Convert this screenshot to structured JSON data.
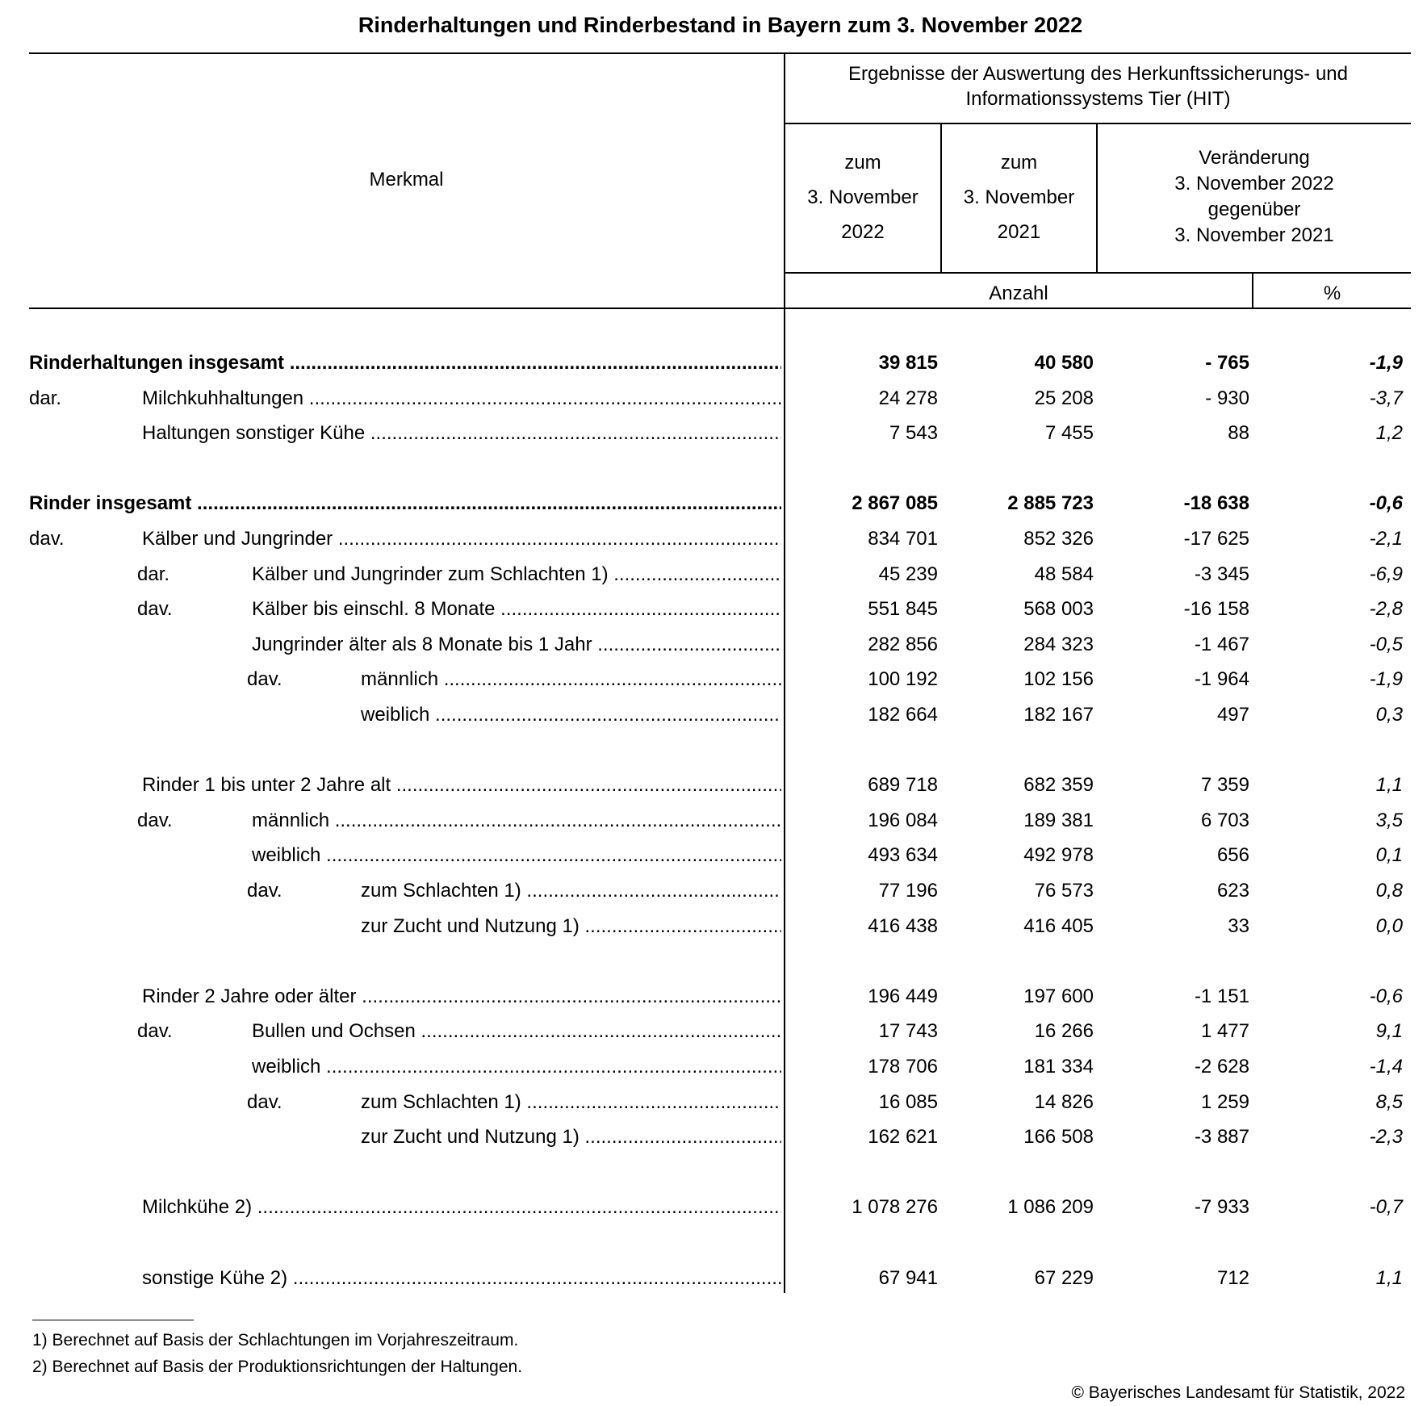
{
  "title": "Rinderhaltungen und Rinderbestand in Bayern zum 3. November 2022",
  "header": {
    "merkmal": "Merkmal",
    "source_line1": "Ergebnisse der Auswertung des Herkunftssicherungs- und",
    "source_line2": "Informationssystems Tier (HIT)",
    "col1": [
      "zum",
      "3. November",
      "2022"
    ],
    "col2": [
      "zum",
      "3. November",
      "2021"
    ],
    "col3": [
      "Veränderung",
      "3. November 2022",
      "gegenüber",
      "3. November 2021"
    ],
    "unit_count": "Anzahl",
    "unit_pct": "%"
  },
  "rows": [
    {
      "slot": 0,
      "level": 0,
      "bold": true,
      "label": "Rinderhaltungen insgesamt",
      "v2022": "39 815",
      "v2021": "40 580",
      "diff": "- 765",
      "pct": "-1,9"
    },
    {
      "slot": 1,
      "level": 1,
      "prefix": "dar.",
      "label": "Milchkuhhaltungen",
      "v2022": "24 278",
      "v2021": "25 208",
      "diff": "- 930",
      "pct": "-3,7"
    },
    {
      "slot": 2,
      "level": 1,
      "label": "Haltungen sonstiger Kühe",
      "v2022": "7 543",
      "v2021": "7 455",
      "diff": "88",
      "pct": "1,2"
    },
    {
      "slot": 4,
      "level": 0,
      "bold": true,
      "label": "Rinder insgesamt",
      "v2022": "2 867 085",
      "v2021": "2 885 723",
      "diff": "-18 638",
      "pct": "-0,6"
    },
    {
      "slot": 5,
      "level": 1,
      "prefix": "dav.",
      "label": "Kälber und Jungrinder",
      "v2022": "834 701",
      "v2021": "852 326",
      "diff": "-17 625",
      "pct": "-2,1"
    },
    {
      "slot": 6,
      "level": 2,
      "prefix": "dar.",
      "label": "Kälber und Jungrinder zum Schlachten 1)",
      "v2022": "45 239",
      "v2021": "48 584",
      "diff": "-3 345",
      "pct": "-6,9"
    },
    {
      "slot": 7,
      "level": 2,
      "prefix": "dav.",
      "label": "Kälber bis einschl. 8 Monate",
      "v2022": "551 845",
      "v2021": "568 003",
      "diff": "-16 158",
      "pct": "-2,8"
    },
    {
      "slot": 8,
      "level": 2,
      "label": "Jungrinder älter als 8 Monate bis 1 Jahr",
      "v2022": "282 856",
      "v2021": "284 323",
      "diff": "-1 467",
      "pct": "-0,5"
    },
    {
      "slot": 9,
      "level": 3,
      "prefix": "dav.",
      "label": "männlich",
      "v2022": "100 192",
      "v2021": "102 156",
      "diff": "-1 964",
      "pct": "-1,9"
    },
    {
      "slot": 10,
      "level": 3,
      "label": "weiblich",
      "v2022": "182 664",
      "v2021": "182 167",
      "diff": "497",
      "pct": "0,3"
    },
    {
      "slot": 12,
      "level": 1,
      "label": "Rinder 1 bis unter 2 Jahre alt",
      "v2022": "689 718",
      "v2021": "682 359",
      "diff": "7 359",
      "pct": "1,1"
    },
    {
      "slot": 13,
      "level": 2,
      "prefix": "dav.",
      "label": "männlich",
      "v2022": "196 084",
      "v2021": "189 381",
      "diff": "6 703",
      "pct": "3,5"
    },
    {
      "slot": 14,
      "level": 2,
      "label": "weiblich ",
      "v2022": "493 634",
      "v2021": "492 978",
      "diff": "656",
      "pct": "0,1"
    },
    {
      "slot": 15,
      "level": 3,
      "prefix": "dav.",
      "label": "zum Schlachten 1)",
      "v2022": "77 196",
      "v2021": "76 573",
      "diff": "623",
      "pct": "0,8"
    },
    {
      "slot": 16,
      "level": 3,
      "label": "zur Zucht und Nutzung 1)",
      "v2022": "416 438",
      "v2021": "416 405",
      "diff": "33",
      "pct": "0,0"
    },
    {
      "slot": 18,
      "level": 1,
      "label": "Rinder 2 Jahre oder älter",
      "v2022": "196 449",
      "v2021": "197 600",
      "diff": "-1 151",
      "pct": "-0,6"
    },
    {
      "slot": 19,
      "level": 2,
      "prefix": "dav.",
      "label": "Bullen und Ochsen",
      "v2022": "17 743",
      "v2021": "16 266",
      "diff": "1 477",
      "pct": "9,1"
    },
    {
      "slot": 20,
      "level": 2,
      "label": "weiblich ",
      "v2022": "178 706",
      "v2021": "181 334",
      "diff": "-2 628",
      "pct": "-1,4"
    },
    {
      "slot": 21,
      "level": 3,
      "prefix": "dav.",
      "label": "zum Schlachten 1)",
      "v2022": "16 085",
      "v2021": "14 826",
      "diff": "1 259",
      "pct": "8,5"
    },
    {
      "slot": 22,
      "level": 3,
      "label": "zur Zucht und Nutzung 1)",
      "v2022": "162 621",
      "v2021": "166 508",
      "diff": "-3 887",
      "pct": "-2,3"
    },
    {
      "slot": 24,
      "level": 1,
      "label": "Milchkühe 2)",
      "v2022": "1 078 276",
      "v2021": "1 086 209",
      "diff": "-7 933",
      "pct": "-0,7"
    },
    {
      "slot": 26,
      "level": 1,
      "label": "sonstige Kühe 2)",
      "v2022": "67 941",
      "v2021": "67 229",
      "diff": "712",
      "pct": "1,1"
    }
  ],
  "footnotes": [
    "1) Berechnet auf Basis der Schlachtungen im Vorjahreszeitraum.",
    "2) Berechnet auf Basis der Produktionsrichtungen der Haltungen."
  ],
  "copyright": "© Bayerisches Landesamt für Statistik, 2022"
}
